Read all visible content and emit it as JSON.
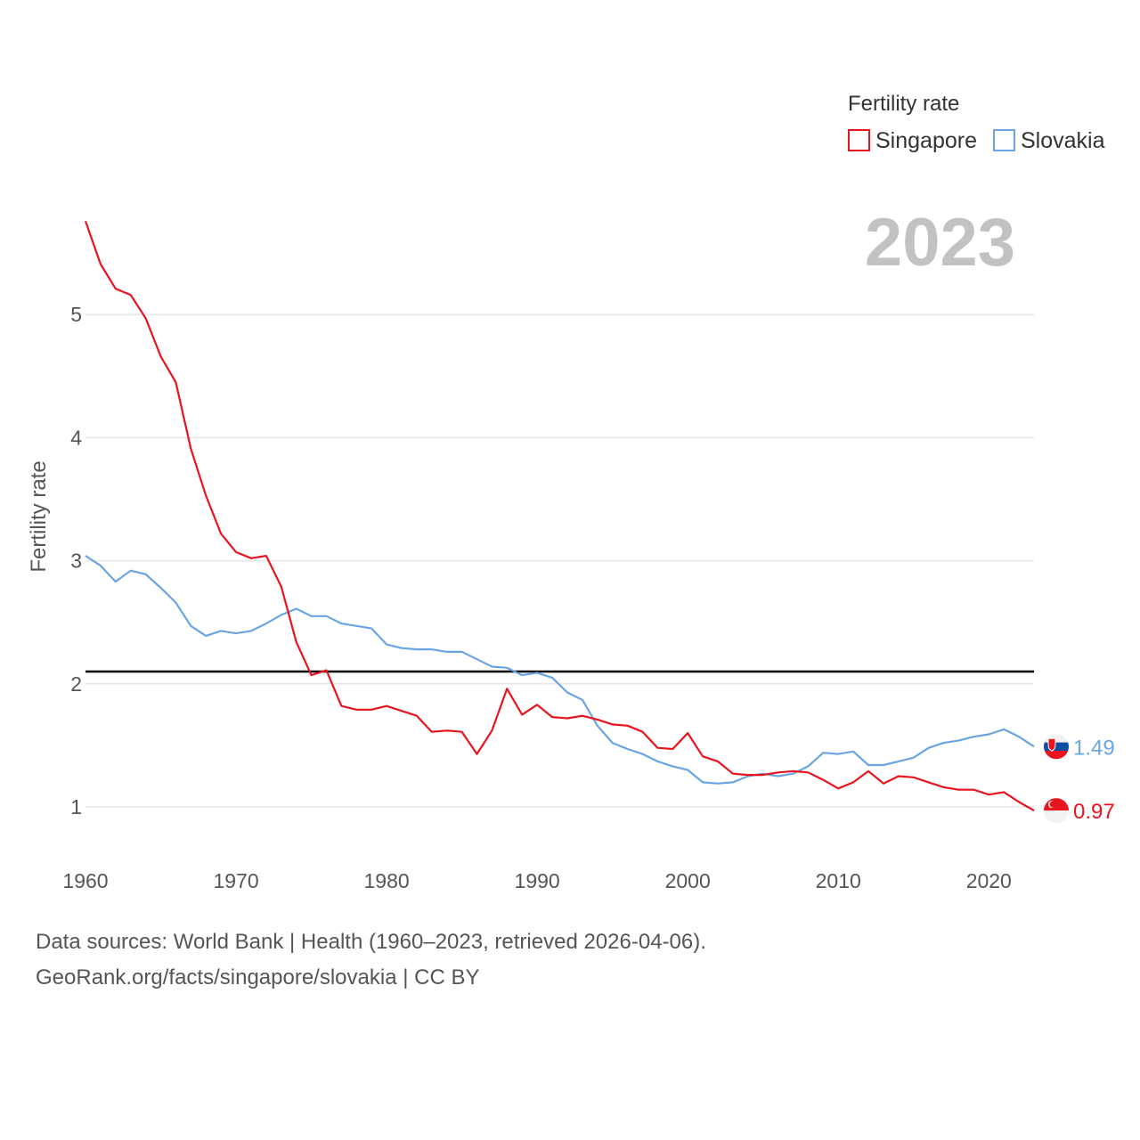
{
  "chart_data": {
    "type": "line",
    "title": "",
    "year_label": "2023",
    "ylabel": "Fertility rate",
    "xlabel": "",
    "xlim": [
      1960,
      2023
    ],
    "ylim": [
      0.6,
      5.9
    ],
    "x_ticks": [
      1960,
      1970,
      1980,
      1990,
      2000,
      2010,
      2020
    ],
    "y_ticks": [
      1,
      2,
      3,
      4,
      5
    ],
    "legend": {
      "title": "Fertility rate",
      "position": "top-right"
    },
    "reference_line": {
      "value": 2.1
    },
    "x": [
      1960,
      1961,
      1962,
      1963,
      1964,
      1965,
      1966,
      1967,
      1968,
      1969,
      1970,
      1971,
      1972,
      1973,
      1974,
      1975,
      1976,
      1977,
      1978,
      1979,
      1980,
      1981,
      1982,
      1983,
      1984,
      1985,
      1986,
      1987,
      1988,
      1989,
      1990,
      1991,
      1992,
      1993,
      1994,
      1995,
      1996,
      1997,
      1998,
      1999,
      2000,
      2001,
      2002,
      2003,
      2004,
      2005,
      2006,
      2007,
      2008,
      2009,
      2010,
      2011,
      2012,
      2013,
      2014,
      2015,
      2016,
      2017,
      2018,
      2019,
      2020,
      2021,
      2022,
      2023
    ],
    "series": [
      {
        "name": "Singapore",
        "color": "#e8141e",
        "end_label": "0.97",
        "flag": "singapore-flag",
        "values": [
          5.76,
          5.41,
          5.21,
          5.16,
          4.97,
          4.66,
          4.45,
          3.91,
          3.53,
          3.22,
          3.07,
          3.02,
          3.04,
          2.79,
          2.34,
          2.07,
          2.11,
          1.82,
          1.79,
          1.79,
          1.82,
          1.78,
          1.74,
          1.61,
          1.62,
          1.61,
          1.43,
          1.62,
          1.96,
          1.75,
          1.83,
          1.73,
          1.72,
          1.74,
          1.71,
          1.67,
          1.66,
          1.61,
          1.48,
          1.47,
          1.6,
          1.41,
          1.37,
          1.27,
          1.26,
          1.26,
          1.28,
          1.29,
          1.28,
          1.22,
          1.15,
          1.2,
          1.29,
          1.19,
          1.25,
          1.24,
          1.2,
          1.16,
          1.14,
          1.14,
          1.1,
          1.12,
          1.04,
          0.97
        ]
      },
      {
        "name": "Slovakia",
        "color": "#6aa5e3",
        "end_label": "1.49",
        "flag": "slovakia-flag",
        "values": [
          3.04,
          2.96,
          2.83,
          2.92,
          2.89,
          2.78,
          2.66,
          2.47,
          2.39,
          2.43,
          2.41,
          2.43,
          2.49,
          2.56,
          2.61,
          2.55,
          2.55,
          2.49,
          2.47,
          2.45,
          2.32,
          2.29,
          2.28,
          2.28,
          2.26,
          2.26,
          2.2,
          2.14,
          2.13,
          2.07,
          2.09,
          2.05,
          1.93,
          1.87,
          1.66,
          1.52,
          1.47,
          1.43,
          1.37,
          1.33,
          1.3,
          1.2,
          1.19,
          1.2,
          1.25,
          1.27,
          1.25,
          1.27,
          1.33,
          1.44,
          1.43,
          1.45,
          1.34,
          1.34,
          1.37,
          1.4,
          1.48,
          1.52,
          1.54,
          1.57,
          1.59,
          1.63,
          1.57,
          1.49
        ]
      }
    ]
  },
  "footer": {
    "line1": "Data sources: World Bank | Health (1960–2023, retrieved 2026-04-06).",
    "line2": "GeoRank.org/facts/singapore/slovakia | CC BY"
  }
}
